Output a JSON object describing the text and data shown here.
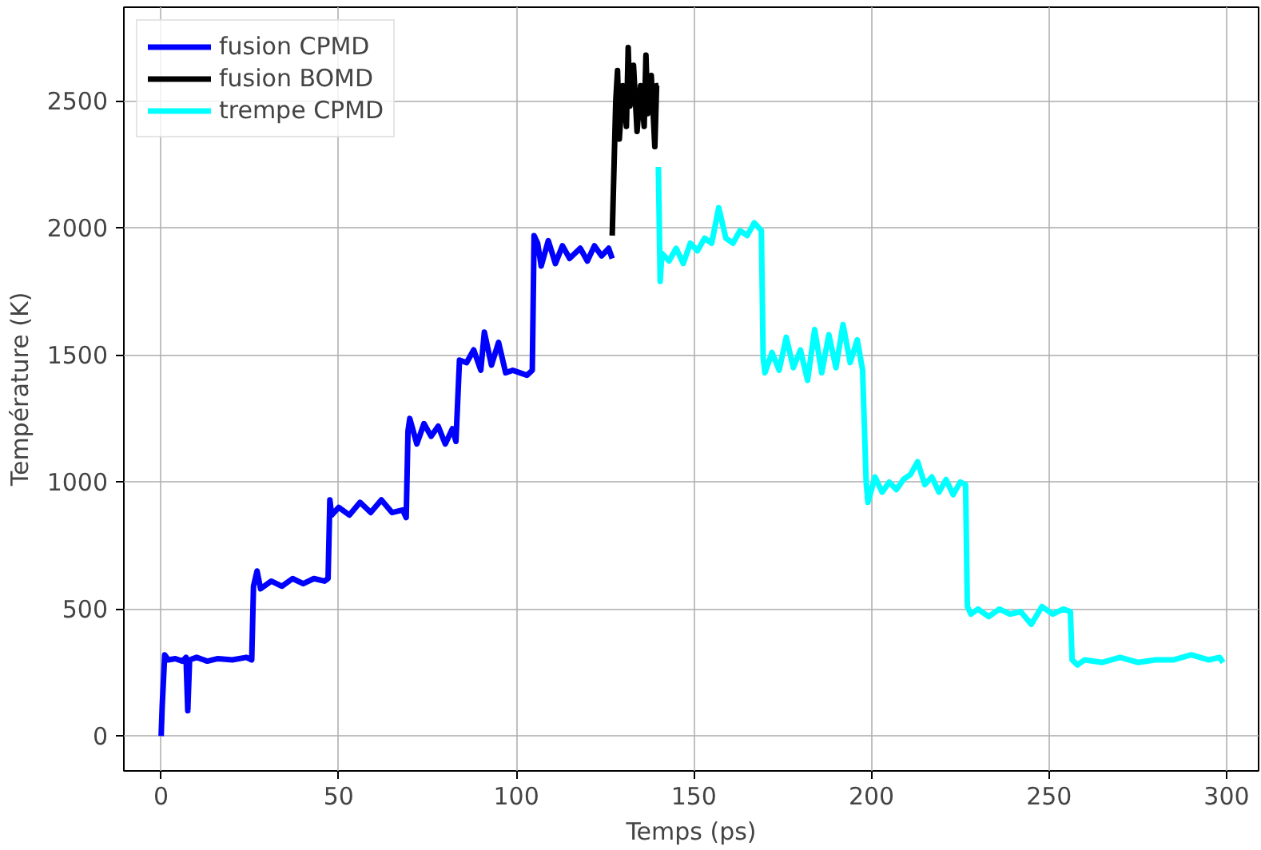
{
  "chart_data": {
    "type": "line",
    "xlabel": "Temps (ps)",
    "ylabel": "Température (K)",
    "xlim": [
      -10.5,
      309
    ],
    "ylim": [
      -137,
      2869
    ],
    "xticks": [
      0,
      50,
      100,
      150,
      200,
      250,
      300
    ],
    "yticks": [
      0,
      500,
      1000,
      1500,
      2000,
      2500
    ],
    "grid": true,
    "legend": "top left",
    "line_style": "solid",
    "marker": "none",
    "series": [
      {
        "name": "fusion CPMD",
        "color": "#0000ff",
        "x": [
          0,
          0.3,
          1,
          2,
          4,
          6,
          7,
          7.5,
          8,
          10,
          13,
          16,
          20,
          24,
          25.5,
          26,
          27,
          28,
          31,
          34,
          37,
          40,
          43,
          46,
          47,
          47.5,
          48,
          50,
          53,
          56,
          59,
          62,
          65,
          68,
          69,
          69.5,
          70,
          72,
          74,
          76,
          78,
          80,
          82,
          83,
          84,
          86,
          88,
          90,
          91,
          93,
          95,
          97,
          99,
          101,
          103,
          104.5,
          105,
          106,
          107,
          109,
          111,
          113,
          115,
          118,
          120,
          122,
          124,
          126,
          127
        ],
        "values": [
          0,
          120,
          320,
          300,
          305,
          295,
          310,
          100,
          300,
          310,
          295,
          305,
          300,
          310,
          300,
          590,
          650,
          580,
          610,
          590,
          620,
          600,
          620,
          610,
          620,
          930,
          870,
          900,
          870,
          920,
          880,
          930,
          880,
          890,
          860,
          1200,
          1250,
          1150,
          1230,
          1180,
          1220,
          1150,
          1210,
          1160,
          1480,
          1470,
          1520,
          1440,
          1590,
          1460,
          1550,
          1430,
          1440,
          1430,
          1420,
          1440,
          1970,
          1940,
          1850,
          1950,
          1860,
          1930,
          1880,
          1920,
          1870,
          1930,
          1890,
          1920,
          1880
        ]
      },
      {
        "name": "fusion BOMD",
        "color": "#000000",
        "x": [
          127,
          128,
          128.5,
          129,
          130,
          131,
          131.5,
          132,
          133,
          134,
          135,
          136,
          136.5,
          137,
          138,
          139,
          139.5,
          140
        ],
        "values": [
          1970,
          2500,
          2620,
          2350,
          2560,
          2400,
          2710,
          2480,
          2640,
          2380,
          2560,
          2400,
          2680,
          2450,
          2600,
          2320,
          2560,
          2560
        ]
      },
      {
        "name": "trempe CPMD",
        "color": "#00ffff",
        "x": [
          140,
          140.5,
          141,
          143,
          145,
          147,
          149,
          151,
          153,
          155,
          157,
          159,
          161,
          163,
          165,
          167,
          169,
          169.5,
          170,
          172,
          174,
          176,
          178,
          180,
          182,
          184,
          186,
          188,
          190,
          192,
          194,
          196,
          197.5,
          198.5,
          199,
          201,
          203,
          205,
          207,
          209,
          211,
          213,
          215,
          217,
          219,
          221,
          223,
          225,
          226.5,
          227,
          228,
          230,
          233,
          236,
          239,
          242,
          245,
          248,
          251,
          254,
          256,
          256.5,
          258,
          260,
          265,
          270,
          275,
          280,
          285,
          290,
          295,
          298,
          299
        ],
        "values": [
          2240,
          1790,
          1900,
          1870,
          1920,
          1860,
          1940,
          1910,
          1960,
          1940,
          2080,
          1960,
          1940,
          1990,
          1970,
          2020,
          1990,
          1490,
          1430,
          1510,
          1440,
          1570,
          1450,
          1520,
          1400,
          1600,
          1430,
          1580,
          1450,
          1620,
          1470,
          1560,
          1440,
          1000,
          920,
          1020,
          960,
          1000,
          970,
          1010,
          1030,
          1080,
          990,
          1020,
          960,
          1010,
          950,
          1000,
          990,
          510,
          480,
          500,
          470,
          500,
          480,
          490,
          440,
          510,
          480,
          500,
          490,
          300,
          280,
          300,
          290,
          310,
          290,
          300,
          300,
          320,
          300,
          310,
          290
        ]
      }
    ]
  }
}
